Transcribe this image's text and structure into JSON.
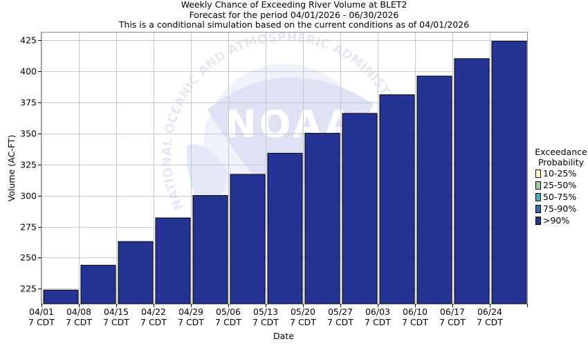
{
  "header": {
    "title": "Weekly Chance of Exceeding River Volume at BLET2",
    "subtitle1": "Forecast for the period 04/01/2026 - 06/30/2026",
    "subtitle2": "This is a conditional simulation based on the current conditions as of 04/01/2026"
  },
  "watermark": {
    "text": "NATIONAL OCEANIC AND ATMOSPHERIC ADMINISTRATION",
    "logo": "NOAA"
  },
  "legend": {
    "title_line1": "Exceedance",
    "title_line2": "Probability",
    "items": [
      {
        "label": "10-25%",
        "color": "#fffcc0"
      },
      {
        "label": "25-50%",
        "color": "#98d4a0"
      },
      {
        "label": "50-75%",
        "color": "#40b0c0"
      },
      {
        "label": "75-90%",
        "color": "#2a70b0"
      },
      {
        "label": ">90%",
        "color": "#253494"
      }
    ]
  },
  "chart_data": {
    "type": "bar",
    "xlabel": "Date",
    "ylabel": "Volume (AC-FT)",
    "ylim": [
      213,
      431
    ],
    "yticks": [
      225,
      250,
      275,
      300,
      325,
      350,
      375,
      400,
      425
    ],
    "grid": true,
    "legend_position": "right",
    "categories": [
      [
        "04/01",
        "7 CDT"
      ],
      [
        "04/08",
        "7 CDT"
      ],
      [
        "04/15",
        "7 CDT"
      ],
      [
        "04/22",
        "7 CDT"
      ],
      [
        "04/29",
        "7 CDT"
      ],
      [
        "05/06",
        "7 CDT"
      ],
      [
        "05/13",
        "7 CDT"
      ],
      [
        "05/20",
        "7 CDT"
      ],
      [
        "05/27",
        "7 CDT"
      ],
      [
        "06/03",
        "7 CDT"
      ],
      [
        "06/10",
        "7 CDT"
      ],
      [
        "06/17",
        "7 CDT"
      ],
      [
        "06/24",
        "7 CDT"
      ]
    ],
    "series": [
      {
        "name": ">90%",
        "color": "#253494",
        "values": [
          224,
          244,
          263,
          282,
          300,
          317,
          334,
          350,
          366,
          381,
          396,
          410,
          424
        ]
      }
    ]
  }
}
